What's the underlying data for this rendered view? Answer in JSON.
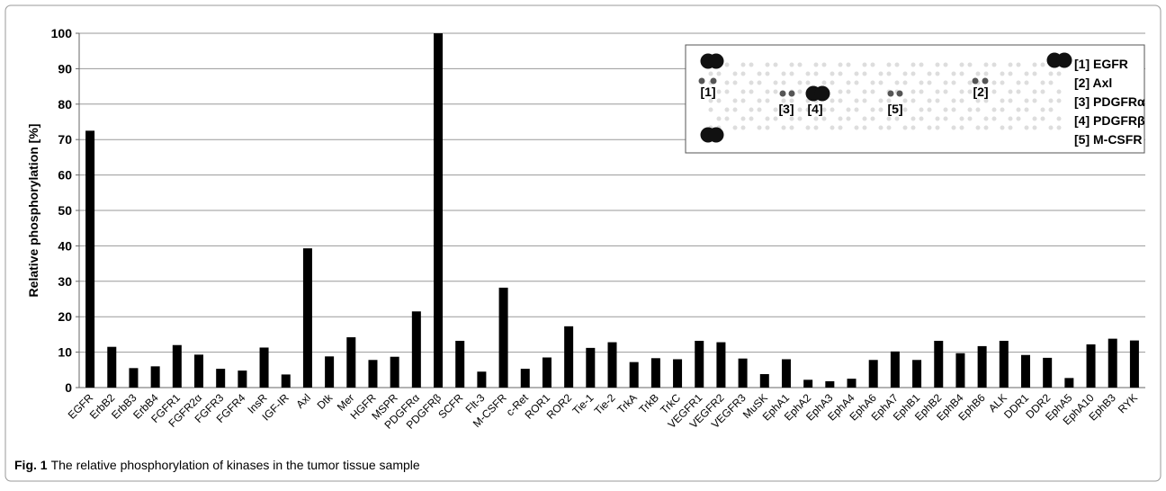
{
  "chart_data": {
    "type": "bar",
    "y_label": "Relative phosphorylation [%]",
    "categories": [
      "EGFR",
      "ErbB2",
      "ErbB3",
      "ErbB4",
      "FGFR1",
      "FGFR2α",
      "FGFR3",
      "FGFR4",
      "InsR",
      "IGF-IR",
      "Axl",
      "Dtk",
      "Mer",
      "HGFR",
      "MSPR",
      "PDGFRα",
      "PDGFRβ",
      "SCFR",
      "Flt-3",
      "M-CSFR",
      "c-Ret",
      "ROR1",
      "ROR2",
      "Tie-1",
      "Tie-2",
      "TrkA",
      "TrkB",
      "TrkC",
      "VEGFR1",
      "VEGFR2",
      "VEGFR3",
      "MuSK",
      "EphA1",
      "EphA2",
      "EphA3",
      "EphA4",
      "EphA6",
      "EphA7",
      "EphB1",
      "EphB2",
      "EphB4",
      "EphB6",
      "ALK",
      "DDR1",
      "DDR2",
      "EphA5",
      "EphA10",
      "EphB3",
      "RYK"
    ],
    "values": [
      72.5,
      11.5,
      5.5,
      6,
      12,
      9.3,
      5.3,
      4.8,
      11.3,
      3.7,
      39.3,
      8.8,
      14.2,
      7.8,
      8.7,
      21.5,
      100,
      13.2,
      4.5,
      28.2,
      5.3,
      8.5,
      17.3,
      11.2,
      12.8,
      7.2,
      8.3,
      8,
      13.2,
      12.8,
      8.2,
      3.8,
      8,
      2.2,
      1.8,
      2.5,
      7.8,
      10.2,
      7.8,
      13.2,
      9.7,
      11.7,
      13.2,
      9.2,
      8.4,
      2.7,
      12.2,
      13.8,
      13.3
    ],
    "color": "#000000",
    "ylim": [
      0,
      100
    ],
    "yticks": [
      0,
      10,
      20,
      30,
      40,
      50,
      60,
      70,
      80,
      90,
      100
    ],
    "grid": true,
    "inset": {
      "spot_labels": [
        "[1]",
        "[2]",
        "[3]",
        "[4]",
        "[5]"
      ],
      "legend": [
        "[1]  EGFR",
        "[2]  Axl",
        "[3]  PDGFRα",
        "[4]  PDGFRβ",
        "[5]  M-CSFR"
      ]
    },
    "caption": {
      "label": "Fig. 1",
      "text": "The relative phosphorylation of kinases in the tumor tissue sample"
    }
  }
}
